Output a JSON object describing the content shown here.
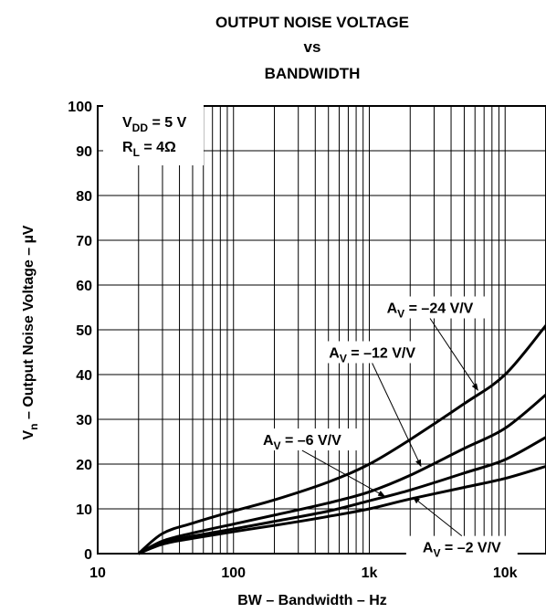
{
  "chart_data": {
    "type": "line",
    "title_lines": [
      "OUTPUT NOISE VOLTAGE",
      "vs",
      "BANDWIDTH"
    ],
    "xlabel": "BW – Bandwidth – Hz",
    "ylabel": {
      "main": "V",
      "sub": "n",
      "rest": " – Output Noise Voltage – µV"
    },
    "x_scale": "log",
    "xlim": [
      10,
      20000
    ],
    "ylim": [
      0,
      100
    ],
    "x_ticks": [
      {
        "value": 10,
        "label": "10"
      },
      {
        "value": 100,
        "label": "100"
      },
      {
        "value": 1000,
        "label": "1k"
      },
      {
        "value": 10000,
        "label": "10k"
      }
    ],
    "y_ticks": [
      {
        "value": 0,
        "label": "0"
      },
      {
        "value": 10,
        "label": "10"
      },
      {
        "value": 20,
        "label": "20"
      },
      {
        "value": 30,
        "label": "30"
      },
      {
        "value": 40,
        "label": "40"
      },
      {
        "value": 50,
        "label": "50"
      },
      {
        "value": 60,
        "label": "60"
      },
      {
        "value": 70,
        "label": "70"
      },
      {
        "value": 80,
        "label": "80"
      },
      {
        "value": 90,
        "label": "90"
      },
      {
        "value": 100,
        "label": "100"
      }
    ],
    "grid": true,
    "conditions": [
      {
        "main": "V",
        "sub": "DD",
        "rest": " = 5 V"
      },
      {
        "main": "R",
        "sub": "L",
        "rest": " = 4Ω"
      }
    ],
    "series": [
      {
        "label": {
          "main": "A",
          "sub": "V",
          "rest": " = –24 V/V"
        },
        "x": [
          20,
          30,
          50,
          100,
          200,
          500,
          1000,
          2000,
          5000,
          10000,
          20000
        ],
        "y": [
          0,
          4.5,
          6.8,
          9.5,
          12,
          16,
          20,
          25.5,
          33.5,
          40,
          51
        ]
      },
      {
        "label": {
          "main": "A",
          "sub": "V",
          "rest": " = –12 V/V"
        },
        "x": [
          20,
          30,
          50,
          100,
          200,
          500,
          1000,
          2000,
          5000,
          10000,
          20000
        ],
        "y": [
          0,
          2.8,
          4.6,
          6.6,
          8.6,
          11.3,
          13.8,
          17.5,
          23.5,
          28,
          35.5
        ]
      },
      {
        "label": {
          "main": "A",
          "sub": "V",
          "rest": " = –6 V/V"
        },
        "x": [
          20,
          30,
          50,
          100,
          200,
          500,
          1000,
          2000,
          5000,
          10000,
          20000
        ],
        "y": [
          0,
          2.4,
          3.9,
          5.5,
          7.2,
          9.5,
          11.8,
          14.2,
          18,
          21,
          26
        ]
      },
      {
        "label": {
          "main": "A",
          "sub": "V",
          "rest": " = –2 V/V"
        },
        "x": [
          20,
          30,
          50,
          100,
          200,
          500,
          1000,
          2000,
          5000,
          10000,
          20000
        ],
        "y": [
          0,
          2.1,
          3.4,
          4.9,
          6.3,
          8.3,
          10,
          12.2,
          14.8,
          16.8,
          19.5
        ]
      }
    ],
    "annotations": [
      {
        "series": 0,
        "box_x": 2800,
        "box_y": 55,
        "arrow_x": 6300,
        "arrow_y": 36.5
      },
      {
        "series": 1,
        "box_x": 1050,
        "box_y": 45,
        "arrow_x": 2400,
        "arrow_y": 19.5
      },
      {
        "series": 2,
        "box_x": 320,
        "box_y": 25.5,
        "arrow_x": 1300,
        "arrow_y": 12.8
      },
      {
        "series": 3,
        "box_x": 4800,
        "box_y": 1.5,
        "arrow_x": 2100,
        "arrow_y": 12.6
      }
    ]
  }
}
